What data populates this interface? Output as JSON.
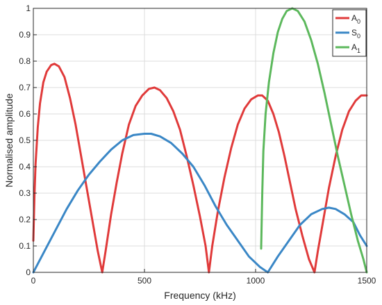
{
  "chart_data": {
    "type": "line",
    "xlabel": "Frequency (kHz)",
    "ylabel": "Normalised amplitude",
    "xlim": [
      0,
      1500
    ],
    "ylim": [
      0,
      1
    ],
    "x_ticks": [
      0,
      500,
      1000,
      1500
    ],
    "y_ticks": [
      0,
      0.1,
      0.2,
      0.3,
      0.4,
      0.5,
      0.6,
      0.7,
      0.8,
      0.9,
      1
    ],
    "x_tick_labels": [
      "0",
      "500",
      "1000",
      "1500"
    ],
    "y_tick_labels": [
      "0",
      "0.1",
      "0.2",
      "0.3",
      "0.4",
      "0.5",
      "0.6",
      "0.7",
      "0.8",
      "0.9",
      "1"
    ],
    "grid": true,
    "legend_position": "top-right",
    "series": [
      {
        "name": "A",
        "name_subscript": "0",
        "color": "#e03a3a",
        "points": [
          [
            0,
            0.12
          ],
          [
            5,
            0.29
          ],
          [
            10,
            0.41
          ],
          [
            20,
            0.55
          ],
          [
            30,
            0.64
          ],
          [
            45,
            0.72
          ],
          [
            60,
            0.76
          ],
          [
            80,
            0.785
          ],
          [
            95,
            0.79
          ],
          [
            115,
            0.78
          ],
          [
            140,
            0.74
          ],
          [
            165,
            0.66
          ],
          [
            190,
            0.56
          ],
          [
            215,
            0.44
          ],
          [
            240,
            0.32
          ],
          [
            265,
            0.2
          ],
          [
            290,
            0.08
          ],
          [
            310,
            0.0
          ],
          [
            325,
            0.08
          ],
          [
            350,
            0.22
          ],
          [
            375,
            0.34
          ],
          [
            400,
            0.45
          ],
          [
            430,
            0.56
          ],
          [
            460,
            0.63
          ],
          [
            490,
            0.67
          ],
          [
            520,
            0.695
          ],
          [
            545,
            0.7
          ],
          [
            570,
            0.69
          ],
          [
            600,
            0.66
          ],
          [
            630,
            0.61
          ],
          [
            660,
            0.54
          ],
          [
            690,
            0.44
          ],
          [
            720,
            0.33
          ],
          [
            750,
            0.21
          ],
          [
            775,
            0.1
          ],
          [
            790,
            0.0
          ],
          [
            805,
            0.1
          ],
          [
            830,
            0.23
          ],
          [
            860,
            0.36
          ],
          [
            890,
            0.47
          ],
          [
            920,
            0.56
          ],
          [
            950,
            0.62
          ],
          [
            980,
            0.655
          ],
          [
            1010,
            0.67
          ],
          [
            1030,
            0.67
          ],
          [
            1055,
            0.65
          ],
          [
            1080,
            0.6
          ],
          [
            1105,
            0.53
          ],
          [
            1130,
            0.44
          ],
          [
            1155,
            0.34
          ],
          [
            1180,
            0.24
          ],
          [
            1210,
            0.14
          ],
          [
            1240,
            0.05
          ],
          [
            1265,
            0.0
          ],
          [
            1280,
            0.08
          ],
          [
            1305,
            0.2
          ],
          [
            1330,
            0.32
          ],
          [
            1360,
            0.44
          ],
          [
            1390,
            0.54
          ],
          [
            1420,
            0.61
          ],
          [
            1450,
            0.65
          ],
          [
            1475,
            0.67
          ],
          [
            1500,
            0.67
          ]
        ]
      },
      {
        "name": "S",
        "name_subscript": "0",
        "color": "#3a87c6",
        "points": [
          [
            0,
            0.0
          ],
          [
            50,
            0.08
          ],
          [
            100,
            0.16
          ],
          [
            150,
            0.24
          ],
          [
            200,
            0.31
          ],
          [
            250,
            0.37
          ],
          [
            300,
            0.42
          ],
          [
            350,
            0.465
          ],
          [
            400,
            0.5
          ],
          [
            450,
            0.52
          ],
          [
            500,
            0.525
          ],
          [
            530,
            0.525
          ],
          [
            570,
            0.515
          ],
          [
            620,
            0.49
          ],
          [
            670,
            0.45
          ],
          [
            720,
            0.4
          ],
          [
            770,
            0.33
          ],
          [
            820,
            0.25
          ],
          [
            870,
            0.18
          ],
          [
            920,
            0.12
          ],
          [
            970,
            0.06
          ],
          [
            1020,
            0.02
          ],
          [
            1055,
            0.0
          ],
          [
            1100,
            0.06
          ],
          [
            1150,
            0.12
          ],
          [
            1200,
            0.18
          ],
          [
            1250,
            0.22
          ],
          [
            1300,
            0.24
          ],
          [
            1330,
            0.245
          ],
          [
            1360,
            0.24
          ],
          [
            1400,
            0.22
          ],
          [
            1440,
            0.19
          ],
          [
            1470,
            0.14
          ],
          [
            1500,
            0.1
          ]
        ]
      },
      {
        "name": "A",
        "name_subscript": "1",
        "color": "#5cb85c",
        "points": [
          [
            1025,
            0.09
          ],
          [
            1030,
            0.3
          ],
          [
            1035,
            0.46
          ],
          [
            1045,
            0.6
          ],
          [
            1060,
            0.72
          ],
          [
            1080,
            0.83
          ],
          [
            1100,
            0.91
          ],
          [
            1120,
            0.96
          ],
          [
            1140,
            0.99
          ],
          [
            1165,
            1.0
          ],
          [
            1190,
            0.99
          ],
          [
            1220,
            0.95
          ],
          [
            1250,
            0.88
          ],
          [
            1280,
            0.79
          ],
          [
            1310,
            0.68
          ],
          [
            1340,
            0.56
          ],
          [
            1370,
            0.44
          ],
          [
            1400,
            0.33
          ],
          [
            1430,
            0.22
          ],
          [
            1460,
            0.12
          ],
          [
            1485,
            0.05
          ],
          [
            1500,
            0.0
          ]
        ]
      }
    ]
  }
}
